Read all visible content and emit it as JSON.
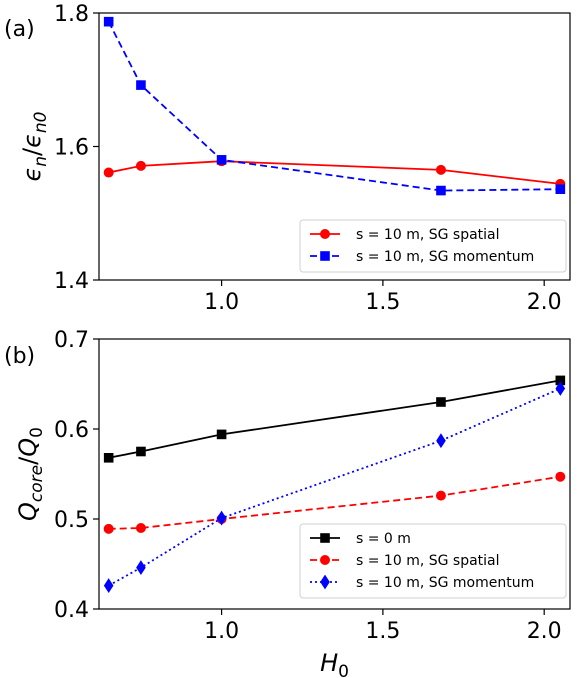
{
  "chart_data": [
    {
      "type": "line",
      "panel_label": "(a)",
      "xlabel": "",
      "ylabel": "ϵn/ϵn0",
      "xlim": [
        0.62,
        2.08
      ],
      "ylim": [
        1.4,
        1.8
      ],
      "x_ticks": [
        1.0,
        1.5,
        2.0
      ],
      "x_tick_labels": [
        "1.0",
        "1.5",
        "2.0"
      ],
      "y_ticks": [
        1.4,
        1.6,
        1.8
      ],
      "y_tick_labels": [
        "1.4",
        "1.6",
        "1.8"
      ],
      "grid": false,
      "legend_position": "lower-right",
      "series": [
        {
          "name": "s = 10 m, SG spatial",
          "color": "#ff0000",
          "marker": "circle",
          "linestyle": "solid",
          "x": [
            0.65,
            0.75,
            1.0,
            1.68,
            2.05
          ],
          "y": [
            1.561,
            1.571,
            1.578,
            1.565,
            1.544
          ]
        },
        {
          "name": "s = 10 m, SG momentum",
          "color": "#0000ff",
          "marker": "square",
          "linestyle": "dashed",
          "x": [
            0.65,
            0.75,
            1.0,
            1.68,
            2.05
          ],
          "y": [
            1.787,
            1.692,
            1.58,
            1.534,
            1.536
          ]
        }
      ]
    },
    {
      "type": "line",
      "panel_label": "(b)",
      "xlabel": "H0",
      "ylabel": "Qcore/Q0",
      "xlim": [
        0.62,
        2.08
      ],
      "ylim": [
        0.4,
        0.7
      ],
      "x_ticks": [
        1.0,
        1.5,
        2.0
      ],
      "x_tick_labels": [
        "1.0",
        "1.5",
        "2.0"
      ],
      "y_ticks": [
        0.4,
        0.5,
        0.6,
        0.7
      ],
      "y_tick_labels": [
        "0.4",
        "0.5",
        "0.6",
        "0.7"
      ],
      "grid": false,
      "legend_position": "lower-right",
      "series": [
        {
          "name": "s = 0 m",
          "color": "#000000",
          "marker": "square",
          "linestyle": "solid",
          "x": [
            0.65,
            0.75,
            1.0,
            1.68,
            2.05
          ],
          "y": [
            0.568,
            0.575,
            0.594,
            0.63,
            0.654
          ]
        },
        {
          "name": "s = 10 m, SG spatial",
          "color": "#ff0000",
          "marker": "circle",
          "linestyle": "dashed",
          "x": [
            0.65,
            0.75,
            1.0,
            1.68,
            2.05
          ],
          "y": [
            0.489,
            0.49,
            0.5,
            0.526,
            0.547
          ]
        },
        {
          "name": "s = 10 m, SG momentum",
          "color": "#0000ff",
          "marker": "diamond",
          "linestyle": "dotted",
          "x": [
            0.65,
            0.75,
            1.0,
            1.68,
            2.05
          ],
          "y": [
            0.426,
            0.446,
            0.501,
            0.587,
            0.645
          ]
        }
      ]
    }
  ]
}
